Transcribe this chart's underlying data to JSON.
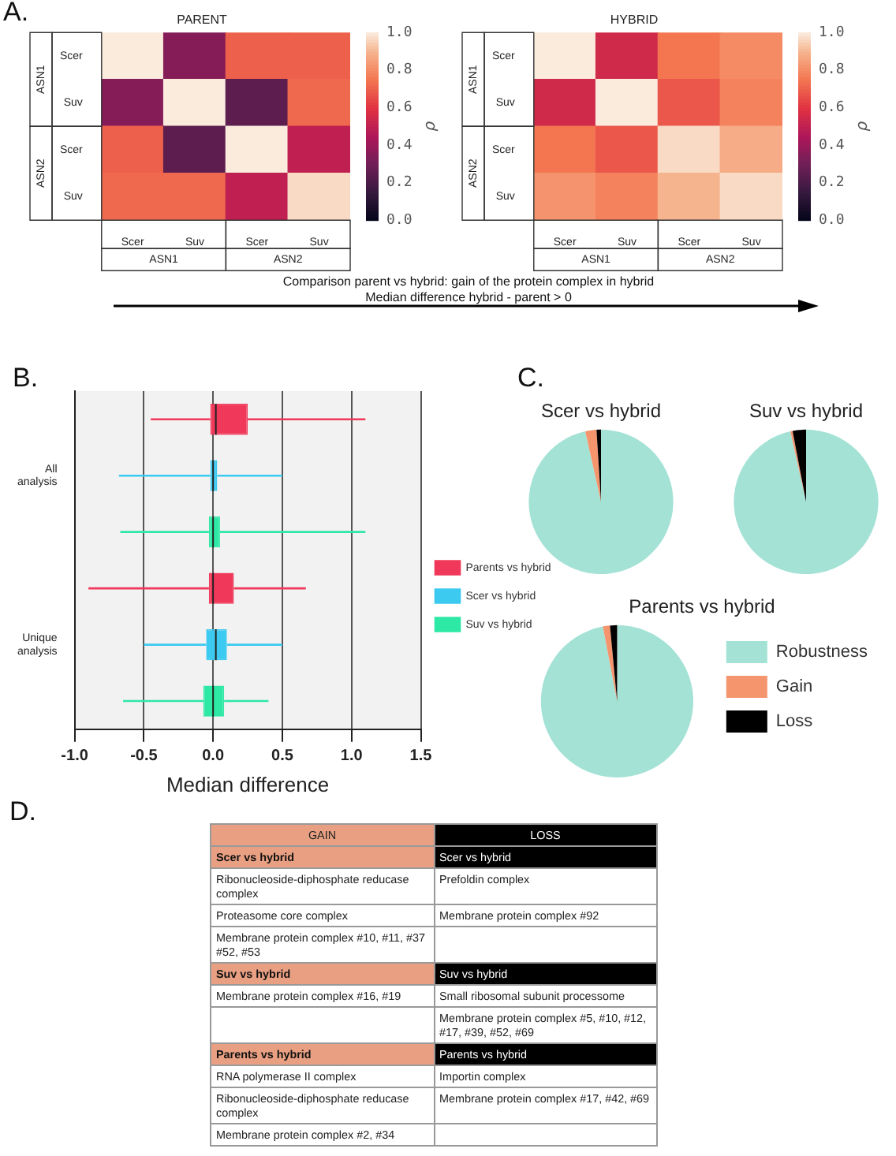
{
  "chart_data": [
    {
      "type": "heatmap",
      "title": "PARENT",
      "categories": [
        "Scer",
        "Suv",
        "Scer",
        "Suv"
      ],
      "y_categories": [
        "Scer",
        "Suv",
        "Scer",
        "Suv"
      ],
      "cells": [
        [
          1.0,
          0.35,
          0.7,
          0.7
        ],
        [
          0.35,
          1.0,
          0.25,
          0.72
        ],
        [
          0.7,
          0.25,
          1.0,
          0.5
        ],
        [
          0.72,
          0.72,
          0.5,
          0.97
        ]
      ],
      "clim": [
        0,
        1
      ],
      "cticks": [
        {
          "value": 0,
          "label": "0.0"
        },
        {
          "value": 0.2,
          "label": "0.2"
        },
        {
          "value": 0.4,
          "label": "0.4"
        },
        {
          "value": 0.6,
          "label": "0.6"
        },
        {
          "value": 0.8,
          "label": "0.8"
        },
        {
          "value": 1,
          "label": "1.0"
        }
      ],
      "clabel": "ρ",
      "annotations": [
        "ASN1",
        "ASN2"
      ]
    },
    {
      "type": "heatmap",
      "title": "HYBRID",
      "categories": [
        "Scer",
        "Suv",
        "Scer",
        "Suv"
      ],
      "y_categories": [
        "Scer",
        "Suv",
        "Scer",
        "Suv"
      ],
      "cells": [
        [
          1.0,
          0.55,
          0.75,
          0.8
        ],
        [
          0.55,
          1.0,
          0.68,
          0.78
        ],
        [
          0.75,
          0.68,
          0.97,
          0.88
        ],
        [
          0.82,
          0.78,
          0.9,
          0.97
        ]
      ],
      "clim": [
        0,
        1
      ],
      "cticks": [
        {
          "value": 0,
          "label": "0.0"
        },
        {
          "value": 0.2,
          "label": "0.2"
        },
        {
          "value": 0.4,
          "label": "0.4"
        },
        {
          "value": 0.6,
          "label": "0.6"
        },
        {
          "value": 0.8,
          "label": "0.8"
        },
        {
          "value": 1,
          "label": "1.0"
        }
      ],
      "clabel": "ρ",
      "annotations": [
        "ASN1",
        "ASN2"
      ]
    },
    {
      "type": "other",
      "annotations": [
        "A.",
        "Comparison parent vs hybrid: gain of the protein complex in hybrid",
        "Median difference hybrid - parent > 0"
      ]
    },
    {
      "type": "box",
      "orientation": "horizontal",
      "categories": [
        null,
        "All analysis",
        null,
        null,
        "Unique analysis",
        null
      ],
      "xlabel": "Median difference",
      "xlim": [
        -1,
        1.5
      ],
      "xticks": [
        {
          "value": -1,
          "label": "-1.0"
        },
        {
          "value": -0.5,
          "label": "-0.5"
        },
        {
          "value": 0,
          "label": "0.0"
        },
        {
          "value": 0.5,
          "label": "0.5"
        },
        {
          "value": 1,
          "label": "1.0"
        },
        {
          "value": 1.5,
          "label": "1.5"
        }
      ],
      "grid": "x",
      "legend": "right",
      "annotations": [
        "B."
      ],
      "series": [
        {
          "name": "Parents vs hybrid",
          "color": "#f0385a",
          "boxes": [
            {
              "low": -0.45,
              "q1": -0.02,
              "median": 0.02,
              "q3": 0.25,
              "high": 1.1
            },
            null,
            null,
            {
              "low": -0.9,
              "q1": -0.03,
              "median": 0.0,
              "q3": 0.15,
              "high": 0.67
            },
            null,
            null
          ]
        },
        {
          "name": "Scer vs hybrid",
          "color": "#3ccaf0",
          "boxes": [
            null,
            {
              "low": -0.68,
              "q1": -0.02,
              "median": 0.0,
              "q3": 0.03,
              "high": 0.5
            },
            null,
            null,
            {
              "low": -0.5,
              "q1": -0.05,
              "median": 0.02,
              "q3": 0.1,
              "high": 0.5
            },
            null
          ]
        },
        {
          "name": "Suv vs hybrid",
          "color": "#2ee8a6",
          "boxes": [
            null,
            null,
            {
              "low": -0.67,
              "q1": -0.03,
              "median": 0.0,
              "q3": 0.05,
              "high": 1.1
            },
            null,
            null,
            {
              "low": -0.65,
              "q1": -0.07,
              "median": 0.0,
              "q3": 0.08,
              "high": 0.4
            }
          ]
        }
      ]
    },
    {
      "type": "pie",
      "title": "Scer vs hybrid",
      "values": [
        96.5,
        2.5,
        1
      ],
      "colors": [
        "#a3e2d5",
        "#f4956e",
        "#000000"
      ],
      "legend": false,
      "annotations": [
        "C."
      ]
    },
    {
      "type": "pie",
      "title": "Suv vs hybrid",
      "values": [
        96.5,
        0.5,
        3
      ],
      "colors": [
        "#a3e2d5",
        "#f4956e",
        "#000000"
      ],
      "legend": false
    },
    {
      "type": "pie",
      "title": "Parents vs hybrid",
      "categories": [
        "Robustness",
        "Gain",
        "Loss"
      ],
      "values": [
        97,
        1.5,
        1.5
      ],
      "colors": [
        "#a3e2d5",
        "#f4956e",
        "#000000"
      ],
      "legend": "right"
    },
    {
      "type": "other",
      "annotations": [
        "D."
      ],
      "categories": [
        "GAIN",
        "LOSS"
      ],
      "colors": [
        "#e9a082",
        "#000000"
      ],
      "y_categories": [
        "Scer vs hybrid",
        null,
        null,
        null,
        "Suv vs hybrid",
        null,
        null,
        "Parents vs hybrid",
        null,
        null,
        null
      ],
      "cell_labels": [
        [
          null,
          null
        ],
        [
          "Ribonucleoside-diphosphate reducase complex",
          "Prefoldin complex"
        ],
        [
          "Proteasome core complex",
          "Membrane protein complex #92"
        ],
        [
          "Membrane protein complex #10, #11, #37 #52, #53",
          null
        ],
        [
          null,
          null
        ],
        [
          "Membrane protein complex #16, #19",
          "Small ribosomal subunit processome"
        ],
        [
          null,
          "Membrane protein complex #5, #10, #12, #17, #39, #52, #69"
        ],
        [
          null,
          null
        ],
        [
          "RNA polymerase II complex",
          "Importin complex"
        ],
        [
          "Ribonucleoside-diphosphate reducase complex",
          "Membrane protein complex #17, #42, #69"
        ],
        [
          "Membrane protein complex #2, #34",
          null
        ]
      ]
    }
  ]
}
